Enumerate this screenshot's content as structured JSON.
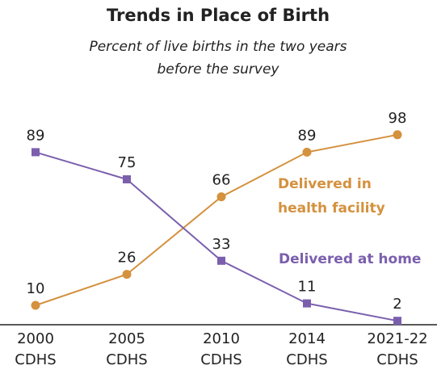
{
  "chart_data": {
    "type": "line",
    "title": "Trends in Place of Birth",
    "subtitle": "Percent of live births in the two years\nbefore the survey",
    "categories": [
      "2000\nCDHS",
      "2005\nCDHS",
      "2010\nCDHS",
      "2014\nCDHS",
      "2021-22\nCDHS"
    ],
    "series": [
      {
        "name": "Delivered in\nhealth facility",
        "color": "#d4913e",
        "marker": "circle",
        "values": [
          10,
          26,
          66,
          89,
          98
        ]
      },
      {
        "name": "Delivered at home",
        "color": "#7b5fad",
        "marker": "square",
        "values": [
          89,
          75,
          33,
          11,
          2
        ]
      }
    ],
    "ylim": [
      0,
      100
    ]
  }
}
